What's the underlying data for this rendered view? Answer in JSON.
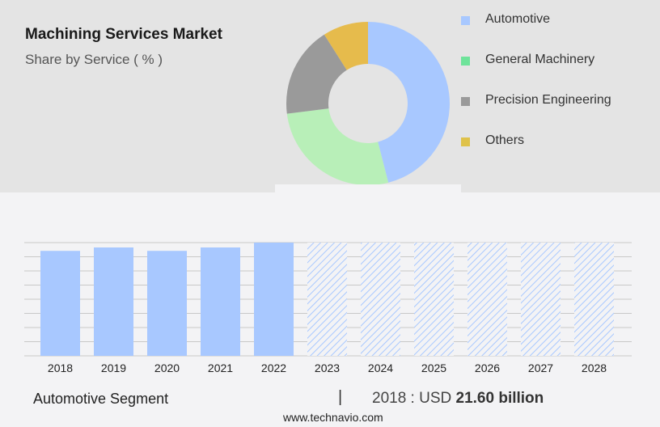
{
  "header": {
    "title": "Machining Services Market",
    "subtitle": "Share by Service ( % )"
  },
  "chart_data": [
    {
      "type": "pie",
      "donut": true,
      "categories": [
        "Automotive",
        "General Machinery",
        "Precision Engineering",
        "Others"
      ],
      "values": [
        46,
        27,
        18,
        9
      ],
      "colors": [
        "#a8c8ff",
        "#b8efb8",
        "#9a9a9a",
        "#e6bb4c"
      ],
      "legend_colors": [
        "#a8c8ff",
        "#6ee39a",
        "#9a9a9a",
        "#dfc24a"
      ],
      "legend": "right"
    },
    {
      "type": "bar",
      "categories": [
        "2018",
        "2019",
        "2020",
        "2021",
        "2022",
        "2023",
        "2024",
        "2025",
        "2026",
        "2027",
        "2028"
      ],
      "values": [
        21.6,
        22.3,
        21.6,
        22.3,
        23.3,
        null,
        null,
        null,
        null,
        null,
        null
      ],
      "forecast": [
        false,
        false,
        false,
        false,
        false,
        true,
        true,
        true,
        true,
        true,
        true
      ],
      "ylim": [
        0,
        23.3
      ],
      "grid": true,
      "color": "#a8c8ff"
    }
  ],
  "footer": {
    "segment": "Automotive Segment",
    "separator": "|",
    "year_label": "2018 : USD",
    "value": "21.60 billion",
    "url": "www.technavio.com"
  }
}
